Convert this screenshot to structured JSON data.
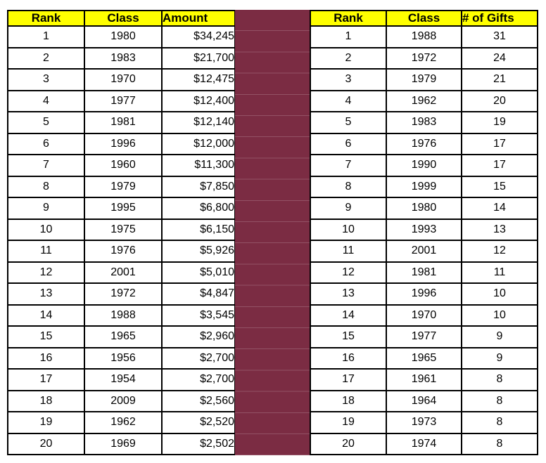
{
  "colors": {
    "separator_fill": "#7B2C43",
    "header_bg": "#FFFF00",
    "border": "#000000",
    "cell_bg": "#FFFFFF",
    "text": "#000000"
  },
  "tables": {
    "amount": {
      "title": "top-classes-by-dollar-amount",
      "headers": [
        "Rank",
        "Class",
        "Amount"
      ],
      "rows": [
        [
          "1",
          "1980",
          "$34,245"
        ],
        [
          "2",
          "1983",
          "$21,700"
        ],
        [
          "3",
          "1970",
          "$12,475"
        ],
        [
          "4",
          "1977",
          "$12,400"
        ],
        [
          "5",
          "1981",
          "$12,140"
        ],
        [
          "6",
          "1996",
          "$12,000"
        ],
        [
          "7",
          "1960",
          "$11,300"
        ],
        [
          "8",
          "1979",
          "$7,850"
        ],
        [
          "9",
          "1995",
          "$6,800"
        ],
        [
          "10",
          "1975",
          "$6,150"
        ],
        [
          "11",
          "1976",
          "$5,926"
        ],
        [
          "12",
          "2001",
          "$5,010"
        ],
        [
          "13",
          "1972",
          "$4,847"
        ],
        [
          "14",
          "1988",
          "$3,545"
        ],
        [
          "15",
          "1965",
          "$2,960"
        ],
        [
          "16",
          "1956",
          "$2,700"
        ],
        [
          "17",
          "1954",
          "$2,700"
        ],
        [
          "18",
          "2009",
          "$2,560"
        ],
        [
          "19",
          "1962",
          "$2,520"
        ],
        [
          "20",
          "1969",
          "$2,502"
        ]
      ]
    },
    "gifts": {
      "title": "top-classes-by-number-of-gifts",
      "headers": [
        "Rank",
        "Class",
        "# of Gifts"
      ],
      "rows": [
        [
          "1",
          "1988",
          "31"
        ],
        [
          "2",
          "1972",
          "24"
        ],
        [
          "3",
          "1979",
          "21"
        ],
        [
          "4",
          "1962",
          "20"
        ],
        [
          "5",
          "1983",
          "19"
        ],
        [
          "6",
          "1976",
          "17"
        ],
        [
          "7",
          "1990",
          "17"
        ],
        [
          "8",
          "1999",
          "15"
        ],
        [
          "9",
          "1980",
          "14"
        ],
        [
          "10",
          "1993",
          "13"
        ],
        [
          "11",
          "2001",
          "12"
        ],
        [
          "12",
          "1981",
          "11"
        ],
        [
          "13",
          "1996",
          "10"
        ],
        [
          "14",
          "1970",
          "10"
        ],
        [
          "15",
          "1977",
          "9"
        ],
        [
          "16",
          "1965",
          "9"
        ],
        [
          "17",
          "1961",
          "8"
        ],
        [
          "18",
          "1964",
          "8"
        ],
        [
          "19",
          "1973",
          "8"
        ],
        [
          "20",
          "1974",
          "8"
        ]
      ]
    }
  }
}
